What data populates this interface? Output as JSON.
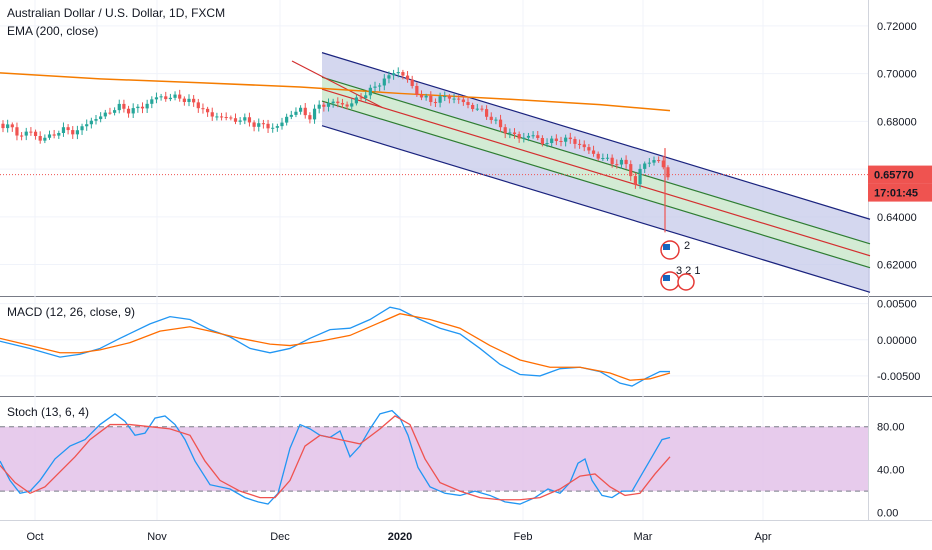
{
  "header": {
    "title": "Australian Dollar / U.S. Dollar, 1D, FXCM",
    "ema_label": "EMA (200, close)"
  },
  "price_badge": {
    "value": "0.65770",
    "countdown": "17:01:45",
    "color": "#ef5350"
  },
  "macd_label": "MACD (12, 26, close, 9)",
  "stoch_label": "Stoch (13, 6, 4)",
  "events": {
    "us_count": "2",
    "other_text": "3 2 1"
  },
  "colors": {
    "up": "#26a69a",
    "down": "#ef5350",
    "ema": "#f57c00",
    "macd": "#2196f3",
    "signal": "#ff6d00",
    "channel_outer": "#1a237e",
    "channel_inner": "#2e7d32",
    "channel_mid": "#d32f2f",
    "channel_fill_outer": "#c5cae9",
    "channel_fill_inner": "#c8e6c9",
    "stoch_band": "#e1bee7"
  },
  "chart_data": [
    {
      "type": "candlestick",
      "title": "Australian Dollar / U.S. Dollar, 1D, FXCM",
      "x_ticks": [
        "Oct",
        "Nov",
        "Dec",
        "2020",
        "Feb",
        "Mar",
        "Apr"
      ],
      "y_ticks": [
        "0.72000",
        "0.70000",
        "0.68000",
        "0.64000",
        "0.62000"
      ],
      "ylim": [
        0.6085,
        0.7275
      ],
      "last_price": 0.6577,
      "close_path": [
        [
          0,
          0.679
        ],
        [
          10,
          0.6775
        ],
        [
          20,
          0.674
        ],
        [
          30,
          0.6758
        ],
        [
          40,
          0.6725
        ],
        [
          50,
          0.6735
        ],
        [
          60,
          0.6765
        ],
        [
          70,
          0.6758
        ],
        [
          80,
          0.6762
        ],
        [
          90,
          0.6805
        ],
        [
          100,
          0.6815
        ],
        [
          110,
          0.6845
        ],
        [
          120,
          0.686
        ],
        [
          130,
          0.6845
        ],
        [
          140,
          0.6855
        ],
        [
          150,
          0.6885
        ],
        [
          160,
          0.6905
        ],
        [
          170,
          0.6898
        ],
        [
          180,
          0.6902
        ],
        [
          190,
          0.688
        ],
        [
          200,
          0.6865
        ],
        [
          210,
          0.682
        ],
        [
          220,
          0.6825
        ],
        [
          230,
          0.6805
        ],
        [
          240,
          0.681
        ],
        [
          250,
          0.6795
        ],
        [
          260,
          0.6785
        ],
        [
          270,
          0.6775
        ],
        [
          280,
          0.678
        ],
        [
          290,
          0.6835
        ],
        [
          300,
          0.6845
        ],
        [
          310,
          0.682
        ],
        [
          320,
          0.6868
        ],
        [
          330,
          0.6878
        ],
        [
          340,
          0.6875
        ],
        [
          350,
          0.6865
        ],
        [
          360,
          0.6905
        ],
        [
          370,
          0.6925
        ],
        [
          380,
          0.6965
        ],
        [
          390,
          0.6988
        ],
        [
          396,
          0.7018
        ],
        [
          405,
          0.6985
        ],
        [
          412,
          0.6945
        ],
        [
          420,
          0.6905
        ],
        [
          430,
          0.6885
        ],
        [
          440,
          0.6895
        ],
        [
          450,
          0.6905
        ],
        [
          460,
          0.6885
        ],
        [
          470,
          0.6865
        ],
        [
          480,
          0.6845
        ],
        [
          490,
          0.682
        ],
        [
          500,
          0.6775
        ],
        [
          510,
          0.675
        ],
        [
          520,
          0.6728
        ],
        [
          530,
          0.6745
        ],
        [
          540,
          0.6718
        ],
        [
          550,
          0.671
        ],
        [
          560,
          0.6728
        ],
        [
          570,
          0.672
        ],
        [
          580,
          0.6705
        ],
        [
          590,
          0.667
        ],
        [
          600,
          0.665
        ],
        [
          610,
          0.663
        ],
        [
          620,
          0.6628
        ],
        [
          628,
          0.6615
        ],
        [
          635,
          0.653
        ],
        [
          640,
          0.6595
        ],
        [
          645,
          0.6625
        ],
        [
          650,
          0.663
        ],
        [
          656,
          0.665
        ],
        [
          662,
          0.6606
        ],
        [
          668,
          0.6577
        ]
      ],
      "ema200": [
        [
          0,
          0.7003
        ],
        [
          100,
          0.6978
        ],
        [
          200,
          0.6962
        ],
        [
          300,
          0.6944
        ],
        [
          400,
          0.6917
        ],
        [
          500,
          0.6895
        ],
        [
          600,
          0.687
        ],
        [
          670,
          0.6845
        ]
      ],
      "channel": {
        "start_index": 322,
        "end_index": 870,
        "upper_outer_start": 0.7088,
        "upper_inner_start": 0.6985,
        "median_start": 0.6935,
        "lower_inner_start": 0.6885,
        "lower_outer_start": 0.6782,
        "slope_per_index": -0.0001274
      },
      "red_trend_start": {
        "index": 292,
        "price": 0.7053
      },
      "spike_low": {
        "index": 665,
        "price": 0.6335
      }
    },
    {
      "type": "line",
      "title": "MACD (12, 26, close, 9)",
      "y_ticks": [
        "0.00500",
        "0.00000",
        "-0.00500"
      ],
      "ylim": [
        -0.0075,
        0.0055
      ],
      "series": [
        {
          "name": "MACD",
          "points": [
            [
              0,
              -0.0002
            ],
            [
              30,
              -0.0012
            ],
            [
              60,
              -0.0024
            ],
            [
              80,
              -0.002
            ],
            [
              100,
              -0.0012
            ],
            [
              120,
              0.0002
            ],
            [
              150,
              0.0022
            ],
            [
              170,
              0.0032
            ],
            [
              190,
              0.0028
            ],
            [
              210,
              0.0014
            ],
            [
              230,
              0.0004
            ],
            [
              250,
              -0.0012
            ],
            [
              270,
              -0.0018
            ],
            [
              290,
              -0.0012
            ],
            [
              310,
              0.0002
            ],
            [
              330,
              0.0014
            ],
            [
              350,
              0.0016
            ],
            [
              370,
              0.0028
            ],
            [
              390,
              0.0045
            ],
            [
              400,
              0.0042
            ],
            [
              420,
              0.0028
            ],
            [
              440,
              0.0016
            ],
            [
              460,
              0.0008
            ],
            [
              480,
              -0.0012
            ],
            [
              500,
              -0.0034
            ],
            [
              520,
              -0.0048
            ],
            [
              540,
              -0.005
            ],
            [
              560,
              -0.004
            ],
            [
              580,
              -0.0038
            ],
            [
              600,
              -0.0044
            ],
            [
              620,
              -0.006
            ],
            [
              632,
              -0.0064
            ],
            [
              645,
              -0.0054
            ],
            [
              660,
              -0.0044
            ],
            [
              670,
              -0.0044
            ]
          ]
        },
        {
          "name": "Signal",
          "points": [
            [
              0,
              0.0002
            ],
            [
              30,
              -0.0008
            ],
            [
              60,
              -0.0018
            ],
            [
              80,
              -0.0018
            ],
            [
              100,
              -0.0014
            ],
            [
              130,
              -0.0004
            ],
            [
              160,
              0.0012
            ],
            [
              190,
              0.0018
            ],
            [
              210,
              0.0012
            ],
            [
              240,
              0.0002
            ],
            [
              270,
              -0.0006
            ],
            [
              290,
              -0.0008
            ],
            [
              320,
              -0.0002
            ],
            [
              350,
              0.0006
            ],
            [
              380,
              0.0024
            ],
            [
              400,
              0.0036
            ],
            [
              430,
              0.0028
            ],
            [
              460,
              0.0016
            ],
            [
              490,
              -0.0008
            ],
            [
              520,
              -0.0028
            ],
            [
              550,
              -0.0038
            ],
            [
              580,
              -0.0038
            ],
            [
              610,
              -0.0046
            ],
            [
              630,
              -0.0056
            ],
            [
              650,
              -0.0054
            ],
            [
              670,
              -0.0046
            ]
          ]
        }
      ]
    },
    {
      "type": "line",
      "title": "Stoch (13, 6, 4)",
      "y_ticks": [
        "80.00",
        "40.00",
        "0.00"
      ],
      "ylim": [
        -5,
        103
      ],
      "bands": [
        20,
        80
      ],
      "series": [
        {
          "name": "%K",
          "points": [
            [
              0,
              48
            ],
            [
              10,
              30
            ],
            [
              20,
              18
            ],
            [
              30,
              20
            ],
            [
              40,
              30
            ],
            [
              55,
              50
            ],
            [
              70,
              62
            ],
            [
              85,
              68
            ],
            [
              100,
              82
            ],
            [
              115,
              92
            ],
            [
              125,
              85
            ],
            [
              135,
              72
            ],
            [
              145,
              74
            ],
            [
              155,
              88
            ],
            [
              165,
              90
            ],
            [
              175,
              82
            ],
            [
              185,
              68
            ],
            [
              195,
              48
            ],
            [
              210,
              26
            ],
            [
              230,
              22
            ],
            [
              245,
              14
            ],
            [
              258,
              10
            ],
            [
              268,
              8
            ],
            [
              278,
              18
            ],
            [
              290,
              60
            ],
            [
              300,
              82
            ],
            [
              310,
              78
            ],
            [
              320,
              72
            ],
            [
              330,
              70
            ],
            [
              340,
              76
            ],
            [
              350,
              52
            ],
            [
              360,
              62
            ],
            [
              370,
              78
            ],
            [
              380,
              92
            ],
            [
              392,
              95
            ],
            [
              400,
              88
            ],
            [
              408,
              72
            ],
            [
              418,
              42
            ],
            [
              430,
              24
            ],
            [
              445,
              18
            ],
            [
              460,
              16
            ],
            [
              475,
              20
            ],
            [
              490,
              16
            ],
            [
              505,
              10
            ],
            [
              520,
              8
            ],
            [
              535,
              14
            ],
            [
              548,
              22
            ],
            [
              560,
              18
            ],
            [
              570,
              28
            ],
            [
              578,
              46
            ],
            [
              585,
              50
            ],
            [
              592,
              30
            ],
            [
              602,
              16
            ],
            [
              612,
              14
            ],
            [
              622,
              20
            ],
            [
              632,
              20
            ],
            [
              642,
              36
            ],
            [
              652,
              52
            ],
            [
              662,
              68
            ],
            [
              670,
              70
            ]
          ]
        },
        {
          "name": "%D",
          "points": [
            [
              0,
              44
            ],
            [
              15,
              28
            ],
            [
              30,
              18
            ],
            [
              45,
              24
            ],
            [
              60,
              38
            ],
            [
              75,
              52
            ],
            [
              90,
              68
            ],
            [
              110,
              82
            ],
            [
              130,
              82
            ],
            [
              150,
              80
            ],
            [
              170,
              78
            ],
            [
              190,
              72
            ],
            [
              205,
              48
            ],
            [
              220,
              30
            ],
            [
              240,
              20
            ],
            [
              260,
              14
            ],
            [
              275,
              14
            ],
            [
              290,
              30
            ],
            [
              305,
              62
            ],
            [
              320,
              72
            ],
            [
              340,
              68
            ],
            [
              360,
              64
            ],
            [
              380,
              78
            ],
            [
              395,
              90
            ],
            [
              410,
              82
            ],
            [
              425,
              50
            ],
            [
              440,
              28
            ],
            [
              460,
              20
            ],
            [
              480,
              14
            ],
            [
              500,
              12
            ],
            [
              520,
              12
            ],
            [
              540,
              14
            ],
            [
              560,
              22
            ],
            [
              580,
              34
            ],
            [
              595,
              36
            ],
            [
              610,
              24
            ],
            [
              625,
              16
            ],
            [
              640,
              18
            ],
            [
              655,
              36
            ],
            [
              670,
              52
            ]
          ]
        }
      ]
    }
  ]
}
